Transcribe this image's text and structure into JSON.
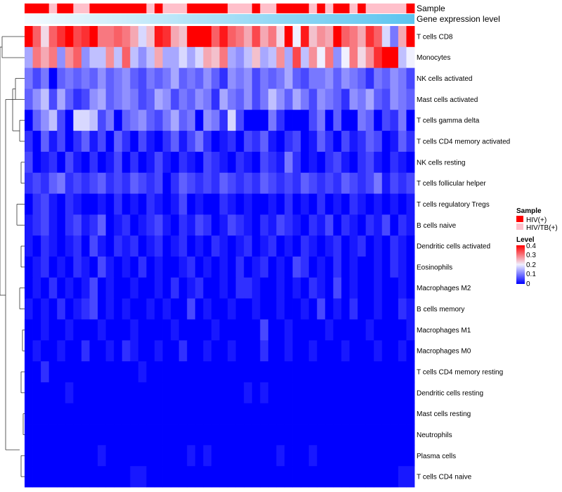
{
  "chart_data": {
    "type": "heatmap",
    "title": "",
    "annotation_labels": {
      "sample": "Sample",
      "expression": "Gene expression level"
    },
    "columns": 48,
    "sample_groups": [
      "HIV(+)",
      "HIV(+)",
      "HIV(+)",
      "HIV/TB(+)",
      "HIV(+)",
      "HIV(+)",
      "HIV/TB(+)",
      "HIV/TB(+)",
      "HIV(+)",
      "HIV(+)",
      "HIV(+)",
      "HIV(+)",
      "HIV(+)",
      "HIV(+)",
      "HIV(+)",
      "HIV/TB(+)",
      "HIV(+)",
      "HIV/TB(+)",
      "HIV/TB(+)",
      "HIV/TB(+)",
      "HIV(+)",
      "HIV(+)",
      "HIV(+)",
      "HIV(+)",
      "HIV(+)",
      "HIV/TB(+)",
      "HIV/TB(+)",
      "HIV/TB(+)",
      "HIV(+)",
      "HIV/TB(+)",
      "HIV/TB(+)",
      "HIV(+)",
      "HIV(+)",
      "HIV(+)",
      "HIV(+)",
      "HIV/TB(+)",
      "HIV(+)",
      "HIV/TB(+)",
      "HIV(+)",
      "HIV(+)",
      "HIV/TB(+)",
      "HIV(+)",
      "HIV/TB(+)",
      "HIV/TB(+)",
      "HIV/TB(+)",
      "HIV/TB(+)",
      "HIV/TB(+)",
      "HIV(+)"
    ],
    "rows": [
      "T cells CD8",
      "Monocytes",
      "NK cells activated",
      "Mast cells activated",
      "T cells gamma delta",
      "T cells CD4 memory activated",
      "NK cells resting",
      "T cells follicular helper",
      "T cells regulatory  Tregs",
      "B cells naive",
      "Dendritic cells activated",
      "Eosinophils",
      "Macrophages M2",
      "B cells memory",
      "Macrophages M1",
      "Macrophages M0",
      "T cells CD4 memory resting",
      "Dendritic cells resting",
      "Mast cells resting",
      "Neutrophils",
      "Plasma cells",
      "T cells CD4 naive"
    ],
    "values": [
      [
        0.4,
        0.32,
        0.22,
        0.32,
        0.36,
        0.4,
        0.34,
        0.36,
        0.4,
        0.3,
        0.3,
        0.32,
        0.3,
        0.26,
        0.18,
        0.24,
        0.38,
        0.36,
        0.26,
        0.24,
        0.4,
        0.4,
        0.4,
        0.32,
        0.38,
        0.32,
        0.3,
        0.26,
        0.34,
        0.26,
        0.3,
        0.22,
        0.4,
        0.2,
        0.38,
        0.24,
        0.28,
        0.26,
        0.4,
        0.32,
        0.3,
        0.26,
        0.36,
        0.32,
        0.18,
        0.1,
        0.26,
        0.4
      ],
      [
        0.14,
        0.3,
        0.26,
        0.3,
        0.12,
        0.28,
        0.32,
        0.12,
        0.16,
        0.16,
        0.28,
        0.16,
        0.32,
        0.16,
        0.12,
        0.16,
        0.26,
        0.14,
        0.14,
        0.18,
        0.14,
        0.18,
        0.26,
        0.24,
        0.3,
        0.14,
        0.12,
        0.16,
        0.24,
        0.14,
        0.16,
        0.28,
        0.14,
        0.34,
        0.16,
        0.28,
        0.2,
        0.3,
        0.12,
        0.2,
        0.3,
        0.22,
        0.28,
        0.36,
        0.4,
        0.4,
        0.16,
        0.2
      ],
      [
        0.1,
        0.06,
        0.1,
        0.0,
        0.08,
        0.1,
        0.08,
        0.1,
        0.08,
        0.12,
        0.08,
        0.1,
        0.12,
        0.08,
        0.06,
        0.1,
        0.08,
        0.1,
        0.14,
        0.08,
        0.1,
        0.08,
        0.12,
        0.08,
        0.04,
        0.12,
        0.1,
        0.12,
        0.06,
        0.1,
        0.08,
        0.1,
        0.14,
        0.08,
        0.06,
        0.1,
        0.1,
        0.12,
        0.08,
        0.12,
        0.1,
        0.08,
        0.04,
        0.1,
        0.08,
        0.12,
        0.1,
        0.06
      ],
      [
        0.08,
        0.12,
        0.16,
        0.06,
        0.14,
        0.08,
        0.04,
        0.06,
        0.12,
        0.14,
        0.08,
        0.1,
        0.12,
        0.1,
        0.06,
        0.08,
        0.14,
        0.12,
        0.06,
        0.1,
        0.08,
        0.12,
        0.1,
        0.04,
        0.14,
        0.1,
        0.08,
        0.12,
        0.06,
        0.1,
        0.16,
        0.12,
        0.08,
        0.14,
        0.1,
        0.06,
        0.12,
        0.1,
        0.08,
        0.04,
        0.12,
        0.1,
        0.14,
        0.08,
        0.06,
        0.12,
        0.1,
        0.08
      ],
      [
        0.0,
        0.08,
        0.12,
        0.16,
        0.06,
        0.0,
        0.18,
        0.18,
        0.16,
        0.06,
        0.1,
        0.0,
        0.08,
        0.1,
        0.12,
        0.08,
        0.06,
        0.1,
        0.14,
        0.08,
        0.1,
        0.0,
        0.12,
        0.1,
        0.04,
        0.18,
        0.06,
        0.0,
        0.0,
        0.0,
        0.1,
        0.04,
        0.0,
        0.0,
        0.0,
        0.06,
        0.1,
        0.0,
        0.08,
        0.0,
        0.0,
        0.1,
        0.08,
        0.0,
        0.06,
        0.04,
        0.1,
        0.0
      ],
      [
        0.04,
        0.0,
        0.08,
        0.02,
        0.06,
        0.0,
        0.04,
        0.08,
        0.02,
        0.06,
        0.0,
        0.08,
        0.04,
        0.0,
        0.06,
        0.02,
        0.0,
        0.04,
        0.08,
        0.02,
        0.06,
        0.1,
        0.04,
        0.0,
        0.02,
        0.04,
        0.0,
        0.06,
        0.04,
        0.08,
        0.02,
        0.0,
        0.04,
        0.06,
        0.0,
        0.02,
        0.08,
        0.04,
        0.0,
        0.06,
        0.02,
        0.04,
        0.08,
        0.06,
        0.0,
        0.02,
        0.08,
        0.04
      ],
      [
        0.06,
        0.0,
        0.02,
        0.04,
        0.0,
        0.06,
        0.02,
        0.0,
        0.04,
        0.0,
        0.02,
        0.06,
        0.0,
        0.04,
        0.0,
        0.02,
        0.06,
        0.02,
        0.0,
        0.04,
        0.02,
        0.0,
        0.06,
        0.04,
        0.02,
        0.0,
        0.04,
        0.02,
        0.0,
        0.06,
        0.04,
        0.02,
        0.1,
        0.04,
        0.0,
        0.02,
        0.0,
        0.04,
        0.06,
        0.02,
        0.0,
        0.04,
        0.06,
        0.02,
        0.0,
        0.04,
        0.02,
        0.0
      ],
      [
        0.04,
        0.06,
        0.04,
        0.08,
        0.1,
        0.04,
        0.06,
        0.04,
        0.06,
        0.08,
        0.04,
        0.06,
        0.04,
        0.08,
        0.06,
        0.04,
        0.06,
        0.0,
        0.04,
        0.08,
        0.06,
        0.04,
        0.06,
        0.04,
        0.08,
        0.06,
        0.04,
        0.06,
        0.04,
        0.08,
        0.06,
        0.04,
        0.06,
        0.04,
        0.08,
        0.06,
        0.04,
        0.06,
        0.04,
        0.08,
        0.06,
        0.04,
        0.06,
        0.1,
        0.02,
        0.06,
        0.04,
        0.06
      ],
      [
        0.0,
        0.04,
        0.06,
        0.02,
        0.0,
        0.04,
        0.02,
        0.0,
        0.0,
        0.02,
        0.0,
        0.04,
        0.0,
        0.02,
        0.0,
        0.04,
        0.02,
        0.0,
        0.02,
        0.06,
        0.0,
        0.02,
        0.0,
        0.0,
        0.04,
        0.02,
        0.0,
        0.02,
        0.0,
        0.0,
        0.02,
        0.0,
        0.04,
        0.0,
        0.02,
        0.0,
        0.04,
        0.0,
        0.02,
        0.0,
        0.04,
        0.02,
        0.0,
        0.02,
        0.0,
        0.02,
        0.0,
        0.02
      ],
      [
        0.02,
        0.04,
        0.06,
        0.02,
        0.0,
        0.04,
        0.06,
        0.02,
        0.04,
        0.08,
        0.0,
        0.02,
        0.04,
        0.0,
        0.02,
        0.04,
        0.06,
        0.02,
        0.0,
        0.04,
        0.02,
        0.06,
        0.04,
        0.0,
        0.02,
        0.06,
        0.04,
        0.02,
        0.0,
        0.04,
        0.02,
        0.06,
        0.04,
        0.02,
        0.0,
        0.04,
        0.02,
        0.06,
        0.0,
        0.04,
        0.02,
        0.0,
        0.04,
        0.02,
        0.06,
        0.0,
        0.04,
        0.02
      ],
      [
        0.02,
        0.0,
        0.04,
        0.02,
        0.0,
        0.02,
        0.04,
        0.0,
        0.06,
        0.02,
        0.0,
        0.04,
        0.02,
        0.04,
        0.0,
        0.02,
        0.04,
        0.0,
        0.02,
        0.04,
        0.0,
        0.02,
        0.0,
        0.04,
        0.02,
        0.0,
        0.02,
        0.04,
        0.0,
        0.02,
        0.04,
        0.0,
        0.02,
        0.0,
        0.04,
        0.02,
        0.0,
        0.02,
        0.04,
        0.0,
        0.02,
        0.04,
        0.0,
        0.02,
        0.0,
        0.04,
        0.02,
        0.0
      ],
      [
        0.0,
        0.02,
        0.04,
        0.0,
        0.02,
        0.0,
        0.04,
        0.02,
        0.0,
        0.06,
        0.02,
        0.0,
        0.02,
        0.0,
        0.04,
        0.0,
        0.02,
        0.0,
        0.0,
        0.02,
        0.04,
        0.0,
        0.02,
        0.0,
        0.02,
        0.0,
        0.04,
        0.0,
        0.02,
        0.04,
        0.0,
        0.02,
        0.0,
        0.06,
        0.04,
        0.0,
        0.02,
        0.0,
        0.04,
        0.0,
        0.02,
        0.0,
        0.0,
        0.02,
        0.0,
        0.04,
        0.02,
        0.0
      ],
      [
        0.0,
        0.02,
        0.0,
        0.04,
        0.0,
        0.02,
        0.0,
        0.02,
        0.06,
        0.0,
        0.02,
        0.0,
        0.0,
        0.02,
        0.0,
        0.0,
        0.02,
        0.0,
        0.04,
        0.0,
        0.02,
        0.04,
        0.0,
        0.0,
        0.02,
        0.0,
        0.04,
        0.04,
        0.02,
        0.0,
        0.0,
        0.02,
        0.0,
        0.02,
        0.0,
        0.04,
        0.02,
        0.0,
        0.06,
        0.0,
        0.02,
        0.0,
        0.0,
        0.02,
        0.0,
        0.0,
        0.02,
        0.0
      ],
      [
        0.02,
        0.0,
        0.02,
        0.0,
        0.04,
        0.0,
        0.02,
        0.04,
        0.06,
        0.0,
        0.02,
        0.0,
        0.02,
        0.0,
        0.0,
        0.02,
        0.0,
        0.02,
        0.0,
        0.0,
        0.06,
        0.0,
        0.02,
        0.0,
        0.0,
        0.02,
        0.0,
        0.0,
        0.02,
        0.0,
        0.0,
        0.02,
        0.0,
        0.0,
        0.02,
        0.0,
        0.06,
        0.0,
        0.02,
        0.0,
        0.04,
        0.0,
        0.0,
        0.02,
        0.0,
        0.0,
        0.04,
        0.02
      ],
      [
        0.0,
        0.0,
        0.02,
        0.0,
        0.0,
        0.02,
        0.0,
        0.0,
        0.0,
        0.02,
        0.0,
        0.0,
        0.0,
        0.02,
        0.0,
        0.0,
        0.0,
        0.0,
        0.02,
        0.0,
        0.0,
        0.0,
        0.0,
        0.02,
        0.0,
        0.0,
        0.0,
        0.0,
        0.0,
        0.06,
        0.0,
        0.0,
        0.02,
        0.0,
        0.0,
        0.0,
        0.0,
        0.02,
        0.0,
        0.0,
        0.0,
        0.0,
        0.02,
        0.0,
        0.0,
        0.0,
        0.0,
        0.02
      ],
      [
        0.0,
        0.02,
        0.0,
        0.0,
        0.02,
        0.0,
        0.0,
        0.04,
        0.0,
        0.0,
        0.02,
        0.0,
        0.04,
        0.02,
        0.0,
        0.0,
        0.02,
        0.0,
        0.0,
        0.04,
        0.0,
        0.0,
        0.02,
        0.0,
        0.0,
        0.02,
        0.0,
        0.0,
        0.0,
        0.04,
        0.0,
        0.0,
        0.02,
        0.0,
        0.0,
        0.02,
        0.0,
        0.0,
        0.0,
        0.02,
        0.0,
        0.0,
        0.0,
        0.02,
        0.0,
        0.0,
        0.02,
        0.0
      ],
      [
        0.0,
        0.0,
        0.04,
        0.0,
        0.0,
        0.0,
        0.0,
        0.0,
        0.0,
        0.0,
        0.0,
        0.0,
        0.0,
        0.0,
        0.02,
        0.0,
        0.0,
        0.0,
        0.0,
        0.0,
        0.0,
        0.0,
        0.0,
        0.0,
        0.0,
        0.0,
        0.0,
        0.0,
        0.0,
        0.0,
        0.0,
        0.0,
        0.0,
        0.0,
        0.0,
        0.0,
        0.0,
        0.0,
        0.0,
        0.0,
        0.0,
        0.0,
        0.0,
        0.0,
        0.0,
        0.0,
        0.0,
        0.0
      ],
      [
        0.0,
        0.0,
        0.0,
        0.0,
        0.0,
        0.02,
        0.0,
        0.0,
        0.0,
        0.0,
        0.0,
        0.0,
        0.0,
        0.0,
        0.0,
        0.0,
        0.0,
        0.0,
        0.0,
        0.0,
        0.0,
        0.0,
        0.0,
        0.0,
        0.0,
        0.0,
        0.0,
        0.02,
        0.0,
        0.02,
        0.0,
        0.0,
        0.0,
        0.0,
        0.0,
        0.0,
        0.0,
        0.0,
        0.0,
        0.0,
        0.0,
        0.0,
        0.0,
        0.0,
        0.0,
        0.0,
        0.0,
        0.0
      ],
      [
        0.0,
        0.0,
        0.0,
        0.0,
        0.0,
        0.0,
        0.0,
        0.0,
        0.0,
        0.0,
        0.0,
        0.0,
        0.0,
        0.0,
        0.0,
        0.0,
        0.0,
        0.0,
        0.0,
        0.0,
        0.0,
        0.0,
        0.0,
        0.0,
        0.0,
        0.0,
        0.0,
        0.0,
        0.0,
        0.0,
        0.0,
        0.0,
        0.0,
        0.0,
        0.0,
        0.0,
        0.0,
        0.0,
        0.0,
        0.0,
        0.0,
        0.0,
        0.0,
        0.0,
        0.0,
        0.0,
        0.0,
        0.0
      ],
      [
        0.0,
        0.0,
        0.0,
        0.0,
        0.0,
        0.0,
        0.0,
        0.0,
        0.0,
        0.0,
        0.0,
        0.0,
        0.0,
        0.0,
        0.0,
        0.0,
        0.0,
        0.0,
        0.0,
        0.0,
        0.0,
        0.0,
        0.0,
        0.0,
        0.0,
        0.0,
        0.0,
        0.0,
        0.0,
        0.0,
        0.0,
        0.0,
        0.0,
        0.0,
        0.0,
        0.0,
        0.0,
        0.0,
        0.0,
        0.0,
        0.0,
        0.0,
        0.0,
        0.0,
        0.0,
        0.0,
        0.0,
        0.0
      ],
      [
        0.0,
        0.0,
        0.0,
        0.0,
        0.0,
        0.0,
        0.0,
        0.0,
        0.0,
        0.02,
        0.0,
        0.0,
        0.0,
        0.0,
        0.0,
        0.0,
        0.0,
        0.0,
        0.0,
        0.0,
        0.02,
        0.0,
        0.02,
        0.0,
        0.0,
        0.0,
        0.0,
        0.0,
        0.0,
        0.0,
        0.0,
        0.02,
        0.0,
        0.0,
        0.0,
        0.02,
        0.0,
        0.0,
        0.0,
        0.0,
        0.0,
        0.0,
        0.0,
        0.0,
        0.0,
        0.0,
        0.0,
        0.0
      ],
      [
        0.0,
        0.0,
        0.0,
        0.0,
        0.0,
        0.0,
        0.0,
        0.0,
        0.0,
        0.0,
        0.0,
        0.0,
        0.0,
        0.02,
        0.02,
        0.0,
        0.0,
        0.0,
        0.0,
        0.0,
        0.0,
        0.0,
        0.0,
        0.0,
        0.0,
        0.0,
        0.0,
        0.0,
        0.0,
        0.0,
        0.0,
        0.0,
        0.0,
        0.0,
        0.0,
        0.0,
        0.0,
        0.0,
        0.0,
        0.0,
        0.0,
        0.0,
        0.0,
        0.0,
        0.0,
        0.0,
        0.02,
        0.02
      ]
    ],
    "legend": {
      "sample_title": "Sample",
      "sample_items": [
        {
          "label": "HIV(+)",
          "color": "#ff0000"
        },
        {
          "label": "HIV/TB(+)",
          "color": "#ffc0cb"
        }
      ],
      "level_title": "Level",
      "level_ticks": [
        "0.4",
        "0.3",
        "0.2",
        "0.1",
        "0"
      ],
      "level_range": [
        0,
        0.4
      ]
    },
    "colors": {
      "low": "#0000ff",
      "mid": "#f0f0ff",
      "high": "#ff0000"
    },
    "expression_gradient": [
      "#f5fbff",
      "#5cc4ef"
    ],
    "legend_position": "right"
  }
}
